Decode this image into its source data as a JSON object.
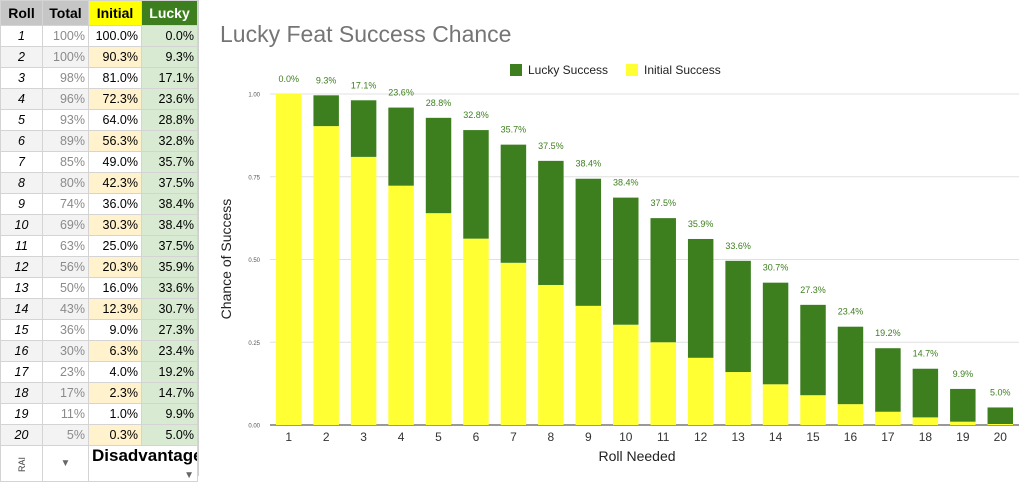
{
  "table": {
    "headers": {
      "roll": "Roll",
      "total": "Total",
      "initial": "Initial",
      "lucky": "Lucky"
    },
    "rows": [
      {
        "roll": "1",
        "total": "100%",
        "initial": "100.0%",
        "lucky": "0.0%"
      },
      {
        "roll": "2",
        "total": "100%",
        "initial": "90.3%",
        "lucky": "9.3%"
      },
      {
        "roll": "3",
        "total": "98%",
        "initial": "81.0%",
        "lucky": "17.1%"
      },
      {
        "roll": "4",
        "total": "96%",
        "initial": "72.3%",
        "lucky": "23.6%"
      },
      {
        "roll": "5",
        "total": "93%",
        "initial": "64.0%",
        "lucky": "28.8%"
      },
      {
        "roll": "6",
        "total": "89%",
        "initial": "56.3%",
        "lucky": "32.8%"
      },
      {
        "roll": "7",
        "total": "85%",
        "initial": "49.0%",
        "lucky": "35.7%"
      },
      {
        "roll": "8",
        "total": "80%",
        "initial": "42.3%",
        "lucky": "37.5%"
      },
      {
        "roll": "9",
        "total": "74%",
        "initial": "36.0%",
        "lucky": "38.4%"
      },
      {
        "roll": "10",
        "total": "69%",
        "initial": "30.3%",
        "lucky": "38.4%"
      },
      {
        "roll": "11",
        "total": "63%",
        "initial": "25.0%",
        "lucky": "37.5%"
      },
      {
        "roll": "12",
        "total": "56%",
        "initial": "20.3%",
        "lucky": "35.9%"
      },
      {
        "roll": "13",
        "total": "50%",
        "initial": "16.0%",
        "lucky": "33.6%"
      },
      {
        "roll": "14",
        "total": "43%",
        "initial": "12.3%",
        "lucky": "30.7%"
      },
      {
        "roll": "15",
        "total": "36%",
        "initial": "9.0%",
        "lucky": "27.3%"
      },
      {
        "roll": "16",
        "total": "30%",
        "initial": "6.3%",
        "lucky": "23.4%"
      },
      {
        "roll": "17",
        "total": "23%",
        "initial": "4.0%",
        "lucky": "19.2%"
      },
      {
        "roll": "18",
        "total": "17%",
        "initial": "2.3%",
        "lucky": "14.7%"
      },
      {
        "roll": "19",
        "total": "11%",
        "initial": "1.0%",
        "lucky": "9.9%"
      },
      {
        "roll": "20",
        "total": "5%",
        "initial": "0.3%",
        "lucky": "5.0%"
      }
    ],
    "footer": {
      "tag": "RAI",
      "mode": "Disadvantage"
    }
  },
  "colors": {
    "lucky": "#3d7f1e",
    "initial": "#ffff33",
    "label": "#3d7f1e",
    "grid": "#e0e0e0",
    "title": "#757575"
  },
  "chart_data": {
    "type": "bar",
    "stacked": true,
    "title": "Lucky Feat Success Chance",
    "xlabel": "Roll Needed",
    "ylabel": "Chance of Success",
    "ylim": [
      0,
      1
    ],
    "yticks": [
      "0.00",
      "0.25",
      "0.50",
      "0.75",
      "1.00"
    ],
    "legend_position": "top",
    "categories": [
      "1",
      "2",
      "3",
      "4",
      "5",
      "6",
      "7",
      "8",
      "9",
      "10",
      "11",
      "12",
      "13",
      "14",
      "15",
      "16",
      "17",
      "18",
      "19",
      "20"
    ],
    "series": [
      {
        "name": "Initial Success",
        "values": [
          1.0,
          0.903,
          0.81,
          0.723,
          0.64,
          0.563,
          0.49,
          0.423,
          0.36,
          0.303,
          0.25,
          0.203,
          0.16,
          0.123,
          0.09,
          0.063,
          0.04,
          0.023,
          0.01,
          0.003
        ]
      },
      {
        "name": "Lucky Success",
        "values": [
          0.0,
          0.093,
          0.171,
          0.236,
          0.288,
          0.328,
          0.357,
          0.375,
          0.384,
          0.384,
          0.375,
          0.359,
          0.336,
          0.307,
          0.273,
          0.234,
          0.192,
          0.147,
          0.099,
          0.05
        ]
      }
    ],
    "data_labels": [
      "0.0%",
      "9.3%",
      "17.1%",
      "23.6%",
      "28.8%",
      "32.8%",
      "35.7%",
      "37.5%",
      "38.4%",
      "38.4%",
      "37.5%",
      "35.9%",
      "33.6%",
      "30.7%",
      "27.3%",
      "23.4%",
      "19.2%",
      "14.7%",
      "9.9%",
      "5.0%"
    ]
  }
}
